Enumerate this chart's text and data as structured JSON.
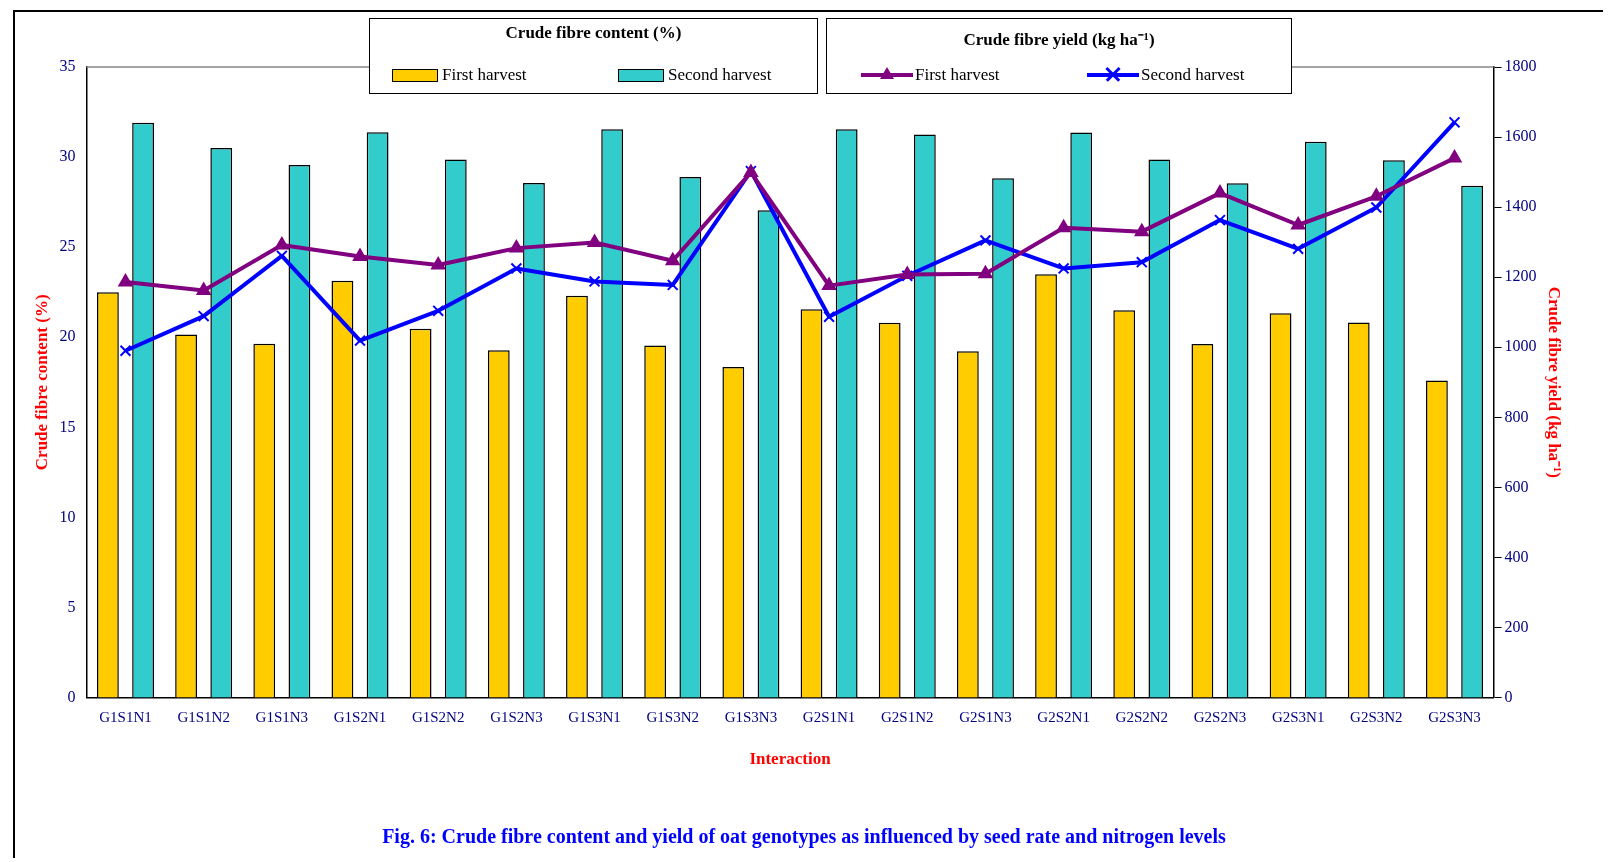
{
  "chart_data": {
    "type": "bar",
    "categories": [
      "G1S1N1",
      "G1S1N2",
      "G1S1N3",
      "G1S2N1",
      "G1S2N2",
      "G1S2N3",
      "G1S3N1",
      "G1S3N2",
      "G1S3N3",
      "G2S1N1",
      "G2S1N2",
      "G2S1N3",
      "G2S2N1",
      "G2S2N2",
      "G2S2N3",
      "G2S3N1",
      "G2S3N2",
      "G2S3N3"
    ],
    "series": [
      {
        "name": "First harvest",
        "color": "#ffcc00",
        "values": [
          22.5,
          20.15,
          19.64,
          23.13,
          20.47,
          19.28,
          22.3,
          19.54,
          18.35,
          21.56,
          20.8,
          19.22,
          23.5,
          21.5,
          19.63,
          21.33,
          20.82,
          17.6
        ]
      },
      {
        "name": "Second harvest",
        "color": "#33cccc",
        "values": [
          31.9,
          30.5,
          29.56,
          31.38,
          29.86,
          28.56,
          31.55,
          28.9,
          27.05,
          31.55,
          31.25,
          28.82,
          31.36,
          29.86,
          28.55,
          30.85,
          29.83,
          28.41
        ]
      },
      {
        "name": "First harvest",
        "type": "line",
        "axis": "y2",
        "marker": "triangle",
        "color": "#800080",
        "values": [
          1186,
          1162,
          1292,
          1259,
          1235,
          1283,
          1299,
          1247,
          1499,
          1176,
          1208,
          1210,
          1341,
          1330,
          1440,
          1349,
          1431,
          1540
        ]
      },
      {
        "name": "Second harvest",
        "type": "line",
        "axis": "y2",
        "marker": "cross",
        "color": "#0000ff",
        "values": [
          990,
          1089,
          1261,
          1019,
          1104,
          1225,
          1188,
          1178,
          1503,
          1087,
          1204,
          1305,
          1225,
          1243,
          1363,
          1281,
          1399,
          1642
        ]
      }
    ],
    "legend_title": [
      "Crude fibre content (%)",
      "Crude fibre yield (kg ha⁻¹)"
    ],
    "legend": "top",
    "xlabel": "Interaction",
    "ylabel": "Crude fibre content (%)",
    "y2label": "Crude fibre yield (kg ha⁻¹)",
    "ylim": [
      0,
      35
    ],
    "yticks": [
      0,
      5,
      10,
      15,
      20,
      25,
      30,
      35
    ],
    "y2lim": [
      0,
      1800
    ],
    "y2ticks": [
      0,
      200,
      400,
      600,
      800,
      1000,
      1200,
      1400,
      1600,
      1800
    ],
    "grid": false,
    "annotations": [
      "Fig. 6: Crude fibre content and yield of oat genotypes as influenced by seed rate and nitrogen levels"
    ]
  }
}
